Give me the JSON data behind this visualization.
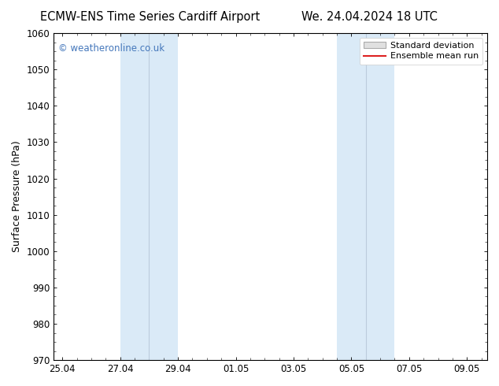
{
  "title_left": "ECMW-ENS Time Series Cardiff Airport",
  "title_right": "We. 24.04.2024 18 UTC",
  "ylabel": "Surface Pressure (hPa)",
  "ylim": [
    970,
    1060
  ],
  "yticks": [
    970,
    980,
    990,
    1000,
    1010,
    1020,
    1030,
    1040,
    1050,
    1060
  ],
  "xtick_labels": [
    "25.04",
    "27.04",
    "29.04",
    "01.05",
    "03.05",
    "05.05",
    "07.05",
    "09.05"
  ],
  "xtick_positions": [
    0,
    2,
    4,
    6,
    8,
    10,
    12,
    14
  ],
  "shaded_band1_xmin": 2.0,
  "shaded_band1_xmax": 3.0,
  "shaded_band1b_xmin": 3.0,
  "shaded_band1b_xmax": 4.0,
  "shaded_band2_xmin": 9.5,
  "shaded_band2_xmax": 10.5,
  "shaded_band2b_xmin": 10.5,
  "shaded_band2b_xmax": 11.5,
  "shaded_color": "#daeaf7",
  "watermark_text": "© weatheronline.co.uk",
  "watermark_color": "#4477bb",
  "legend_std_dev_color": "#cccccc",
  "legend_mean_color": "#dd2222",
  "background_color": "#ffffff",
  "tick_label_fontsize": 8.5,
  "axis_label_fontsize": 9,
  "title_fontsize": 10.5,
  "xlim_min": -0.3,
  "xlim_max": 14.7
}
